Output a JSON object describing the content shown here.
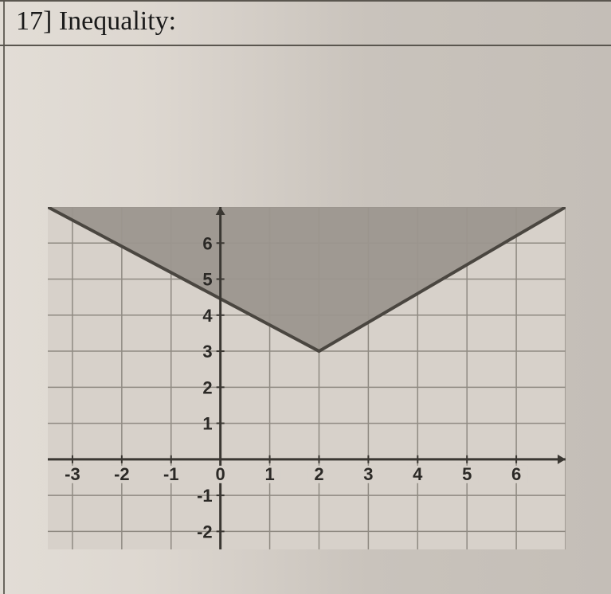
{
  "problem": {
    "number": "17]",
    "label": "Inequality:"
  },
  "graph": {
    "type": "inequality-region",
    "xlim": [
      -3.5,
      7
    ],
    "ylim": [
      -2.5,
      7
    ],
    "xticks": [
      -3,
      -2,
      -1,
      0,
      1,
      2,
      3,
      4,
      5,
      6
    ],
    "xtick_labels": [
      "-3",
      "-2",
      "-1",
      "0",
      "1",
      "2",
      "3",
      "4",
      "5",
      "6"
    ],
    "yticks": [
      -2,
      -1,
      0,
      1,
      2,
      3,
      4,
      5,
      6
    ],
    "ytick_labels": [
      "-2",
      "-1",
      "0",
      "1",
      "2",
      "3",
      "4",
      "5",
      "6"
    ],
    "grid_color": "#8f8a82",
    "axis_color": "#3a3732",
    "background_color": "#d7d1ca",
    "shade_color": "#9c968e",
    "boundary_color": "#4a4640",
    "boundary_width": 4,
    "boundary_style": "solid",
    "label_color": "#2b2926",
    "label_fontsize": 22,
    "vertex": [
      2,
      3
    ],
    "slope": 0.8,
    "region_points": [
      [
        -3.5,
        7
      ],
      [
        7,
        7
      ],
      [
        7,
        7
      ],
      [
        2,
        3
      ],
      [
        -3.5,
        7.4
      ]
    ]
  }
}
